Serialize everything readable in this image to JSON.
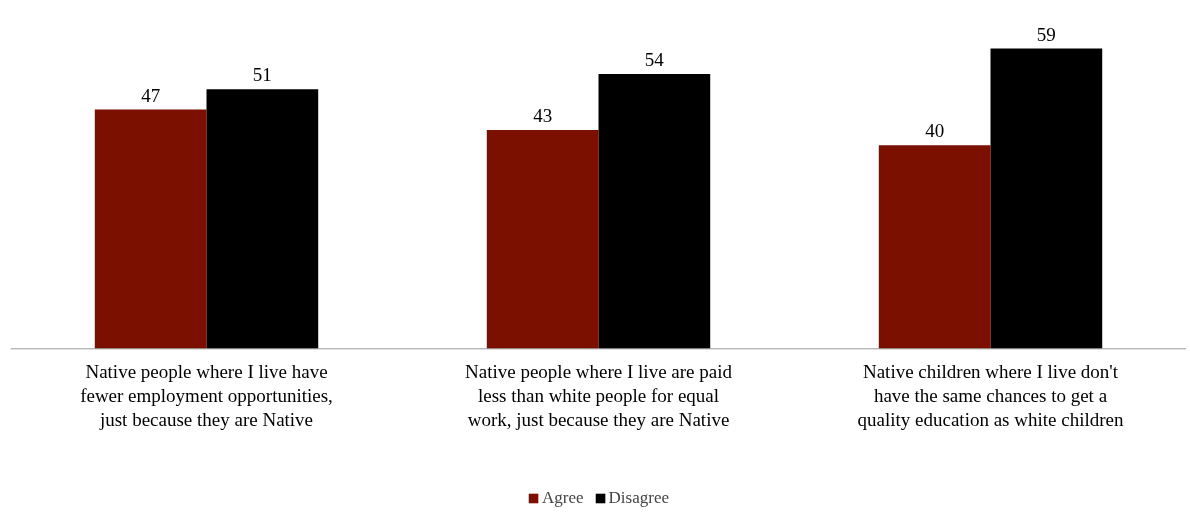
{
  "chart_data": {
    "type": "bar",
    "categories": [
      "Native people where I live have\nfewer employment opportunities,\njust because they are Native",
      "Native people where I live are paid\nless than white people for equal\nwork, just because they are Native",
      "Native children where I live don't\nhave the same chances to get a\nquality education as white children"
    ],
    "series": [
      {
        "name": "Agree",
        "color": "#7b1000",
        "values": [
          47,
          43,
          40
        ]
      },
      {
        "name": "Disagree",
        "color": "#000000",
        "values": [
          51,
          54,
          59
        ]
      }
    ],
    "data_labels": true,
    "grid": false,
    "legend": "bottom"
  }
}
